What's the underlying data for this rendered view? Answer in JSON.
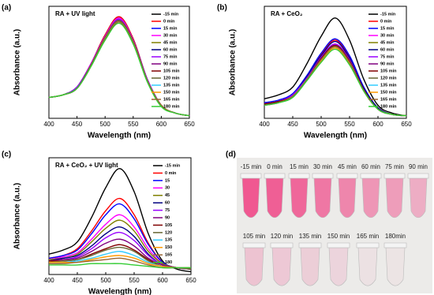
{
  "chart_data": [
    {
      "type": "line",
      "panel_label": "(a)",
      "title": "RA + UV light",
      "xlabel": "Wavelength (nm)",
      "ylabel": "Absorbance (a.u.)",
      "x": [
        400,
        425,
        450,
        475,
        500,
        525,
        550,
        575,
        600,
        625,
        650
      ],
      "xlim": [
        400,
        650
      ],
      "xticks": [
        400,
        450,
        500,
        550,
        600,
        650
      ],
      "ylim": [
        0,
        0.86
      ],
      "series": [
        {
          "name": "-15 min",
          "color": "#000000",
          "values": [
            0.16,
            0.18,
            0.24,
            0.42,
            0.64,
            0.78,
            0.61,
            0.3,
            0.1,
            0.04,
            0.02
          ]
        },
        {
          "name": "0 min",
          "color": "#ff0000",
          "values": [
            0.16,
            0.18,
            0.24,
            0.42,
            0.64,
            0.78,
            0.61,
            0.3,
            0.1,
            0.04,
            0.02
          ]
        },
        {
          "name": "15 min",
          "color": "#0000ff",
          "values": [
            0.16,
            0.18,
            0.24,
            0.42,
            0.63,
            0.77,
            0.6,
            0.3,
            0.1,
            0.04,
            0.02
          ]
        },
        {
          "name": "30 min",
          "color": "#ff00ff",
          "values": [
            0.16,
            0.18,
            0.24,
            0.42,
            0.63,
            0.77,
            0.6,
            0.3,
            0.1,
            0.04,
            0.02
          ]
        },
        {
          "name": "45 min",
          "color": "#808000",
          "values": [
            0.16,
            0.18,
            0.24,
            0.41,
            0.62,
            0.76,
            0.59,
            0.3,
            0.1,
            0.04,
            0.02
          ]
        },
        {
          "name": "60 min",
          "color": "#000080",
          "values": [
            0.16,
            0.18,
            0.24,
            0.41,
            0.62,
            0.76,
            0.59,
            0.3,
            0.1,
            0.04,
            0.02
          ]
        },
        {
          "name": "75 min",
          "color": "#9900ff",
          "values": [
            0.16,
            0.18,
            0.24,
            0.41,
            0.62,
            0.76,
            0.59,
            0.3,
            0.1,
            0.04,
            0.02
          ]
        },
        {
          "name": "90 min",
          "color": "#800080",
          "values": [
            0.16,
            0.18,
            0.23,
            0.41,
            0.62,
            0.75,
            0.59,
            0.29,
            0.1,
            0.04,
            0.02
          ]
        },
        {
          "name": "105 min",
          "color": "#800000",
          "values": [
            0.16,
            0.18,
            0.23,
            0.41,
            0.62,
            0.75,
            0.59,
            0.29,
            0.1,
            0.04,
            0.02
          ]
        },
        {
          "name": "120 min",
          "color": "#666633",
          "values": [
            0.16,
            0.18,
            0.23,
            0.41,
            0.62,
            0.75,
            0.59,
            0.29,
            0.1,
            0.04,
            0.02
          ]
        },
        {
          "name": "135 min",
          "color": "#33ccff",
          "values": [
            0.16,
            0.18,
            0.23,
            0.4,
            0.61,
            0.74,
            0.58,
            0.29,
            0.1,
            0.04,
            0.02
          ]
        },
        {
          "name": "150 min",
          "color": "#ff9900",
          "values": [
            0.16,
            0.18,
            0.23,
            0.4,
            0.61,
            0.74,
            0.58,
            0.29,
            0.1,
            0.04,
            0.02
          ]
        },
        {
          "name": "165 min",
          "color": "#996633",
          "values": [
            0.16,
            0.18,
            0.23,
            0.4,
            0.61,
            0.74,
            0.58,
            0.29,
            0.1,
            0.04,
            0.02
          ]
        },
        {
          "name": "180 min",
          "color": "#33cc33",
          "values": [
            0.16,
            0.18,
            0.23,
            0.4,
            0.6,
            0.73,
            0.57,
            0.28,
            0.09,
            0.04,
            0.02
          ]
        }
      ]
    },
    {
      "type": "line",
      "panel_label": "(b)",
      "title": "RA + CeO₂",
      "xlabel": "Wavelength (nm)",
      "ylabel": "Absorbance (a.u.)",
      "x": [
        400,
        425,
        450,
        475,
        500,
        525,
        550,
        575,
        600,
        625,
        650
      ],
      "xlim": [
        400,
        650
      ],
      "xticks": [
        400,
        450,
        500,
        550,
        600,
        650
      ],
      "ylim": [
        0,
        0.86
      ],
      "series": [
        {
          "name": "-15 min",
          "color": "#000000",
          "values": [
            0.15,
            0.18,
            0.24,
            0.42,
            0.63,
            0.77,
            0.6,
            0.3,
            0.1,
            0.04,
            0.02
          ]
        },
        {
          "name": "0 min",
          "color": "#ff0000",
          "values": [
            0.11,
            0.13,
            0.18,
            0.32,
            0.49,
            0.6,
            0.47,
            0.23,
            0.08,
            0.03,
            0.02
          ]
        },
        {
          "name": "15 min",
          "color": "#0000ff",
          "values": [
            0.12,
            0.14,
            0.19,
            0.33,
            0.5,
            0.61,
            0.48,
            0.24,
            0.08,
            0.03,
            0.02
          ]
        },
        {
          "name": "30 min",
          "color": "#ff00ff",
          "values": [
            0.11,
            0.13,
            0.18,
            0.31,
            0.47,
            0.57,
            0.45,
            0.22,
            0.07,
            0.03,
            0.02
          ]
        },
        {
          "name": "45 min",
          "color": "#808000",
          "values": [
            0.11,
            0.13,
            0.17,
            0.3,
            0.46,
            0.56,
            0.44,
            0.22,
            0.07,
            0.03,
            0.02
          ]
        },
        {
          "name": "60 min",
          "color": "#000080",
          "values": [
            0.11,
            0.13,
            0.18,
            0.32,
            0.48,
            0.59,
            0.46,
            0.23,
            0.08,
            0.03,
            0.02
          ]
        },
        {
          "name": "75 min",
          "color": "#9900ff",
          "values": [
            0.11,
            0.13,
            0.18,
            0.31,
            0.47,
            0.57,
            0.45,
            0.22,
            0.07,
            0.03,
            0.02
          ]
        },
        {
          "name": "90 min",
          "color": "#800080",
          "values": [
            0.11,
            0.13,
            0.17,
            0.3,
            0.46,
            0.56,
            0.44,
            0.22,
            0.07,
            0.03,
            0.02
          ]
        },
        {
          "name": "105 min",
          "color": "#800000",
          "values": [
            0.11,
            0.13,
            0.17,
            0.3,
            0.46,
            0.56,
            0.44,
            0.22,
            0.07,
            0.03,
            0.02
          ]
        },
        {
          "name": "120 min",
          "color": "#666633",
          "values": [
            0.1,
            0.12,
            0.17,
            0.3,
            0.45,
            0.55,
            0.43,
            0.21,
            0.07,
            0.03,
            0.02
          ]
        },
        {
          "name": "135 min",
          "color": "#33ccff",
          "values": [
            0.1,
            0.12,
            0.17,
            0.3,
            0.45,
            0.55,
            0.43,
            0.21,
            0.07,
            0.03,
            0.02
          ]
        },
        {
          "name": "150 min",
          "color": "#ff9900",
          "values": [
            0.1,
            0.12,
            0.17,
            0.29,
            0.44,
            0.54,
            0.42,
            0.21,
            0.07,
            0.03,
            0.02
          ]
        },
        {
          "name": "165 min",
          "color": "#996633",
          "values": [
            0.1,
            0.12,
            0.17,
            0.3,
            0.45,
            0.55,
            0.43,
            0.21,
            0.07,
            0.03,
            0.02
          ]
        },
        {
          "name": "180 min",
          "color": "#33cc33",
          "values": [
            0.1,
            0.12,
            0.16,
            0.29,
            0.43,
            0.53,
            0.41,
            0.21,
            0.07,
            0.03,
            0.02
          ]
        }
      ]
    },
    {
      "type": "line",
      "panel_label": "(c)",
      "title": "RA + CeO₂ + UV light",
      "xlabel": "Wavelength (nm)",
      "ylabel": "Absorbance (a.u.)",
      "x": [
        400,
        425,
        450,
        475,
        500,
        525,
        550,
        575,
        600,
        625,
        650
      ],
      "xlim": [
        400,
        650
      ],
      "xticks": [
        400,
        450,
        500,
        550,
        600,
        650
      ],
      "ylim": [
        0,
        0.86
      ],
      "series": [
        {
          "name": "-15 min",
          "color": "#000000",
          "values": [
            0.15,
            0.18,
            0.24,
            0.42,
            0.64,
            0.78,
            0.61,
            0.3,
            0.1,
            0.04,
            0.02
          ]
        },
        {
          "name": "0 min",
          "color": "#ff0000",
          "values": [
            0.12,
            0.14,
            0.19,
            0.32,
            0.47,
            0.56,
            0.44,
            0.23,
            0.09,
            0.05,
            0.04
          ]
        },
        {
          "name": "15",
          "color": "#0000ff",
          "values": [
            0.12,
            0.14,
            0.18,
            0.3,
            0.44,
            0.52,
            0.41,
            0.22,
            0.09,
            0.05,
            0.04
          ]
        },
        {
          "name": "30",
          "color": "#ff00ff",
          "values": [
            0.11,
            0.13,
            0.16,
            0.26,
            0.37,
            0.44,
            0.35,
            0.19,
            0.08,
            0.05,
            0.04
          ]
        },
        {
          "name": "45",
          "color": "#808000",
          "values": [
            0.11,
            0.12,
            0.15,
            0.24,
            0.34,
            0.4,
            0.32,
            0.17,
            0.08,
            0.05,
            0.04
          ]
        },
        {
          "name": "60",
          "color": "#000080",
          "values": [
            0.1,
            0.12,
            0.14,
            0.21,
            0.3,
            0.35,
            0.28,
            0.15,
            0.07,
            0.05,
            0.04
          ]
        },
        {
          "name": "75",
          "color": "#9900ff",
          "values": [
            0.1,
            0.11,
            0.13,
            0.19,
            0.27,
            0.31,
            0.25,
            0.14,
            0.07,
            0.05,
            0.04
          ]
        },
        {
          "name": "90",
          "color": "#800080",
          "values": [
            0.1,
            0.11,
            0.12,
            0.17,
            0.23,
            0.26,
            0.21,
            0.12,
            0.07,
            0.05,
            0.04
          ]
        },
        {
          "name": "105",
          "color": "#800000",
          "values": [
            0.1,
            0.1,
            0.11,
            0.15,
            0.19,
            0.22,
            0.18,
            0.11,
            0.06,
            0.05,
            0.04
          ]
        },
        {
          "name": "120",
          "color": "#666633",
          "values": [
            0.09,
            0.1,
            0.11,
            0.14,
            0.18,
            0.2,
            0.17,
            0.1,
            0.06,
            0.05,
            0.04
          ]
        },
        {
          "name": "135",
          "color": "#33ccff",
          "values": [
            0.09,
            0.09,
            0.1,
            0.12,
            0.15,
            0.17,
            0.14,
            0.09,
            0.06,
            0.05,
            0.05
          ]
        },
        {
          "name": "150",
          "color": "#ff9900",
          "values": [
            0.09,
            0.09,
            0.09,
            0.11,
            0.13,
            0.14,
            0.12,
            0.08,
            0.06,
            0.05,
            0.05
          ]
        },
        {
          "name": "165",
          "color": "#996633",
          "values": [
            0.08,
            0.08,
            0.09,
            0.1,
            0.11,
            0.12,
            0.1,
            0.07,
            0.05,
            0.05,
            0.05
          ]
        },
        {
          "name": "180",
          "color": "#33cc33",
          "values": [
            0.07,
            0.07,
            0.07,
            0.08,
            0.08,
            0.08,
            0.07,
            0.06,
            0.05,
            0.05,
            0.05
          ]
        }
      ]
    }
  ],
  "photo": {
    "panel_label": "(d)",
    "row1": [
      "-15 min",
      "0 min",
      "15 min",
      "30 min",
      "45 min",
      "60 min",
      "75 min",
      "90 min"
    ],
    "row2": [
      "105 min",
      "120 min",
      "135 min",
      "150 min",
      "165 min",
      "180min"
    ]
  }
}
